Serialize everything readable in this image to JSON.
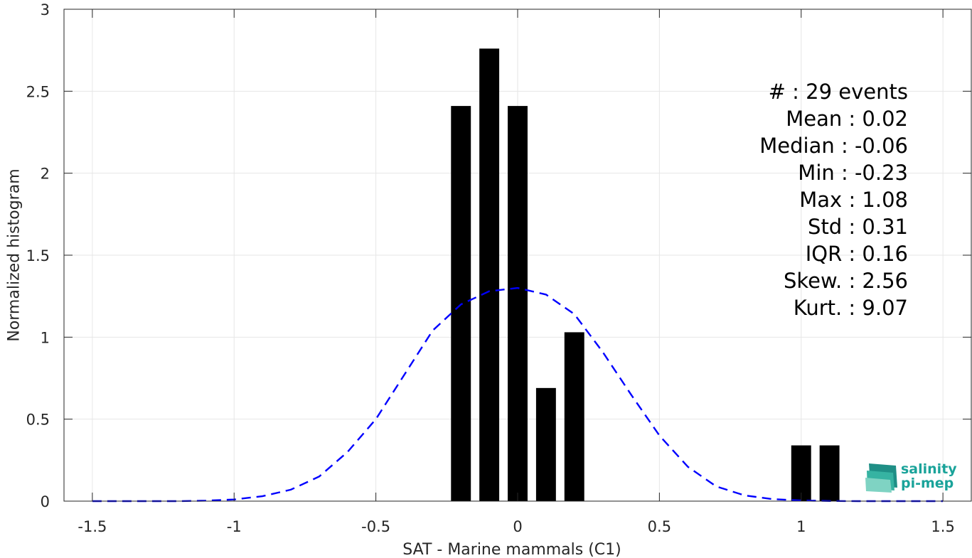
{
  "chart_data": {
    "type": "bar",
    "xlabel": "SAT - Marine mammals (C1)",
    "ylabel": "Normalized histogram",
    "xlim": [
      -1.6,
      1.6
    ],
    "ylim": [
      0,
      3
    ],
    "xticks": [
      -1.5,
      -1,
      -0.5,
      0,
      0.5,
      1,
      1.5
    ],
    "xtick_labels": [
      "-1.5",
      "-1",
      "-0.5",
      "0",
      "0.5",
      "1",
      "1.5"
    ],
    "yticks": [
      0,
      0.5,
      1,
      1.5,
      2,
      2.5,
      3
    ],
    "ytick_labels": [
      "0",
      "0.5",
      "1",
      "1.5",
      "2",
      "2.5",
      "3"
    ],
    "grid": true,
    "bar_width": 0.07,
    "bars": [
      {
        "x": -0.2,
        "value": 2.41
      },
      {
        "x": -0.1,
        "value": 2.76
      },
      {
        "x": 0.0,
        "value": 2.41
      },
      {
        "x": 0.1,
        "value": 0.69
      },
      {
        "x": 0.2,
        "value": 1.03
      },
      {
        "x": 1.0,
        "value": 0.34
      },
      {
        "x": 1.1,
        "value": 0.34
      }
    ],
    "bar_color": "#000000",
    "fit_curve": {
      "style": "dashed",
      "color": "#0000ff",
      "x": [
        -1.5,
        -1.4,
        -1.3,
        -1.2,
        -1.1,
        -1.0,
        -0.9,
        -0.8,
        -0.7,
        -0.6,
        -0.5,
        -0.4,
        -0.3,
        -0.2,
        -0.1,
        0.0,
        0.1,
        0.2,
        0.3,
        0.4,
        0.5,
        0.6,
        0.7,
        0.8,
        0.9,
        1.0,
        1.1,
        1.2,
        1.3,
        1.4,
        1.5
      ],
      "y": [
        0.0,
        0.0,
        0.0,
        0.0,
        0.003,
        0.01,
        0.03,
        0.07,
        0.15,
        0.3,
        0.5,
        0.77,
        1.04,
        1.2,
        1.28,
        1.3,
        1.26,
        1.14,
        0.91,
        0.65,
        0.4,
        0.21,
        0.09,
        0.035,
        0.012,
        0.004,
        0.001,
        0.0,
        0.0,
        0.0,
        0.0
      ]
    },
    "stats": [
      "#  : 29 events",
      "Mean : 0.02",
      "Median : -0.06",
      "Min : -0.23",
      "Max : 1.08",
      "Std : 0.31",
      "IQR : 0.16",
      "Skew. : 2.56",
      "Kurt. : 9.07"
    ]
  },
  "logo": {
    "line1": "salinity",
    "line2": "pi-mep"
  }
}
